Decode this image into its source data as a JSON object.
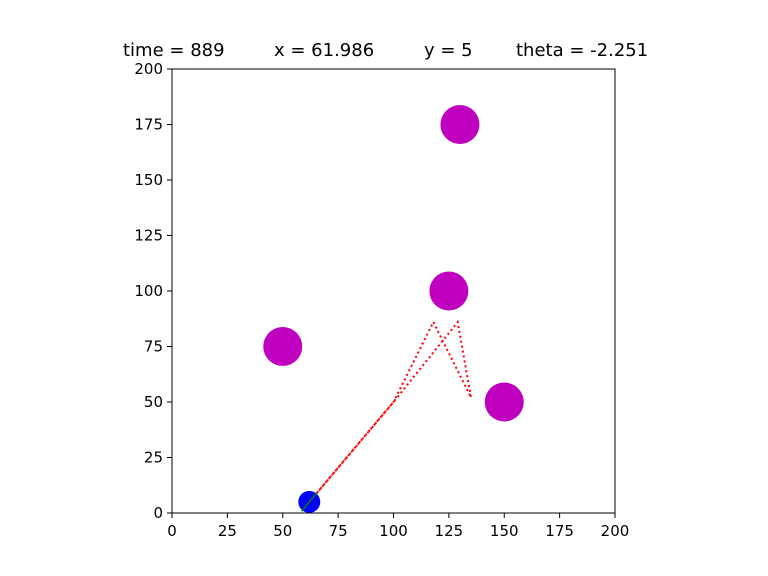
{
  "title": {
    "time": "time = 889",
    "x": "x = 61.986",
    "y": "y = 5",
    "theta": "theta = -2.251"
  },
  "chart_data": {
    "type": "scatter",
    "xlim": [
      0,
      200
    ],
    "ylim": [
      0,
      200
    ],
    "xticks": [
      0,
      25,
      50,
      75,
      100,
      125,
      150,
      175,
      200
    ],
    "yticks": [
      0,
      25,
      50,
      75,
      100,
      125,
      150,
      175,
      200
    ],
    "grid": false,
    "obstacles": {
      "color": "#bf00bf",
      "radius": 8,
      "points": [
        {
          "x": 130,
          "y": 175
        },
        {
          "x": 125,
          "y": 100
        },
        {
          "x": 50,
          "y": 75
        },
        {
          "x": 150,
          "y": 50
        }
      ]
    },
    "path": {
      "color": "#ff0000",
      "style": "dotted",
      "points": [
        {
          "x": 62,
          "y": 5
        },
        {
          "x": 100,
          "y": 50
        },
        {
          "x": 118,
          "y": 86
        },
        {
          "x": 135,
          "y": 52
        },
        {
          "x": 129,
          "y": 86
        },
        {
          "x": 100,
          "y": 50
        },
        {
          "x": 62,
          "y": 5
        }
      ]
    },
    "robot": {
      "x": 61.986,
      "y": 5,
      "theta": -2.251,
      "radius": 4.5,
      "color": "#0000ff",
      "heading_color": "#008000"
    }
  }
}
